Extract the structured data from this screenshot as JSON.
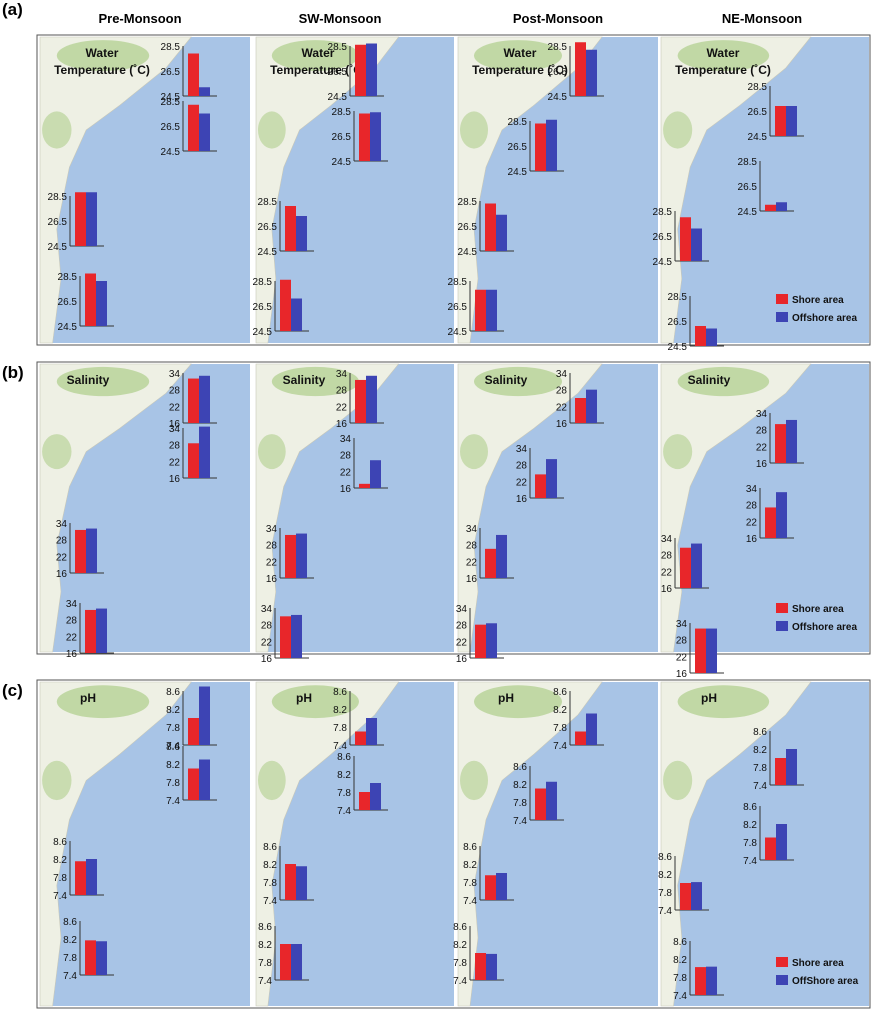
{
  "seasons": [
    "Pre-Monsoon",
    "SW-Monsoon",
    "Post-Monsoon",
    "NE-Monsoon"
  ],
  "legend": {
    "shore": "Shore area",
    "offshore": "Offshore area",
    "offshore_c": "OffShore area"
  },
  "colors": {
    "shore": "#e8262a",
    "offshore": "#3d44b4",
    "sea": "#a8c4e6",
    "land": "#eef0e4",
    "green": "#b9d39a",
    "frame": "#555555"
  },
  "chart_data": [
    {
      "type": "bar",
      "panel": "(a)",
      "title": "Water Temperature (˚C)",
      "title_lines": [
        "Water",
        "Temperature (˚C)"
      ],
      "ylim": [
        24.5,
        28.5
      ],
      "ticks": [
        "28.5",
        "26.5",
        "24.5"
      ],
      "stations": 4,
      "series": [
        {
          "name": "Shore area",
          "values": [
            [
              27.9,
              28.2,
              28.8,
              28.7
            ],
            [
              28.6,
              28.3,
              28.1,
              28.6
            ],
            [
              28.8,
              28.3,
              28.3,
              27.8
            ],
            [
              26.9,
              25.0,
              28.0,
              26.1
            ]
          ]
        },
        {
          "name": "Offshore area",
          "values": [
            [
              25.2,
              27.5,
              28.8,
              28.1
            ],
            [
              28.7,
              28.4,
              27.3,
              27.1
            ],
            [
              28.2,
              28.6,
              27.4,
              27.8
            ],
            [
              26.9,
              25.2,
              27.1,
              25.9
            ]
          ]
        }
      ]
    },
    {
      "type": "bar",
      "panel": "(b)",
      "title": "Salinity",
      "title_lines": [
        "Salinity"
      ],
      "ylim": [
        16,
        34
      ],
      "ticks": [
        "34",
        "28",
        "22",
        "16"
      ],
      "stations": 4,
      "series": [
        {
          "name": "Shore area",
          "values": [
            [
              32.0,
              28.5,
              31.5,
              31.5
            ],
            [
              31.5,
              17.5,
              31.5,
              31.0
            ],
            [
              25.0,
              24.5,
              26.5,
              28.0
            ],
            [
              30.0,
              27.0,
              30.5,
              32.0
            ]
          ]
        },
        {
          "name": "Offshore area",
          "values": [
            [
              33.0,
              34.5,
              32.0,
              32.0
            ],
            [
              33.0,
              26.0,
              32.0,
              31.5
            ],
            [
              28.0,
              30.0,
              31.5,
              28.5
            ],
            [
              31.5,
              32.5,
              32.0,
              32.0
            ]
          ]
        }
      ]
    },
    {
      "type": "bar",
      "panel": "(c)",
      "title": "pH",
      "title_lines": [
        "pH"
      ],
      "ylim": [
        7.4,
        8.6
      ],
      "ticks": [
        "8.6",
        "8.2",
        "7.8",
        "7.4"
      ],
      "stations": 4,
      "series": [
        {
          "name": "Shore area",
          "values": [
            [
              8.0,
              8.1,
              8.15,
              8.17
            ],
            [
              7.7,
              7.8,
              8.2,
              8.2
            ],
            [
              7.7,
              8.1,
              7.95,
              8.0
            ],
            [
              8.0,
              7.9,
              8.0,
              8.02
            ]
          ]
        },
        {
          "name": "OffShore area",
          "values": [
            [
              8.7,
              8.3,
              8.2,
              8.15
            ],
            [
              8.0,
              8.0,
              8.15,
              8.2
            ],
            [
              8.1,
              8.25,
              8.0,
              7.98
            ],
            [
              8.2,
              8.2,
              8.02,
              8.03
            ]
          ]
        }
      ]
    }
  ]
}
